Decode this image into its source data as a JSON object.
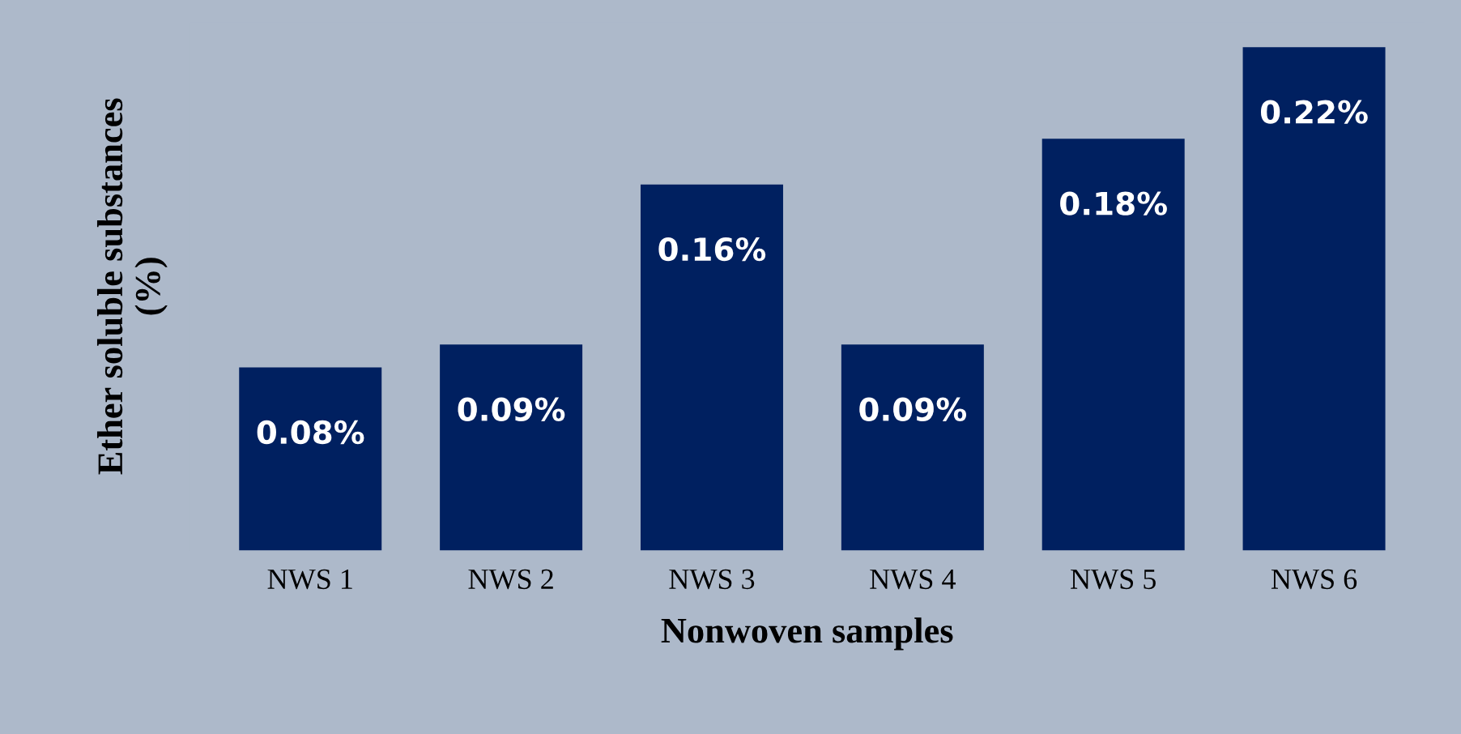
{
  "chart_data": {
    "type": "bar",
    "xlabel": "Nonwoven samples",
    "ylabel": "Ether soluble substances\n(%)",
    "categories": [
      "NWS 1",
      "NWS 2",
      "NWS 3",
      "NWS 4",
      "NWS 5",
      "NWS 6"
    ],
    "values": [
      0.08,
      0.09,
      0.16,
      0.09,
      0.18,
      0.22
    ],
    "value_labels": [
      "0.08%",
      "0.09%",
      "0.16%",
      "0.09%",
      "0.18%",
      "0.22%"
    ],
    "color": "#002060",
    "grid": false,
    "legend": false,
    "tick_labels": "x"
  }
}
